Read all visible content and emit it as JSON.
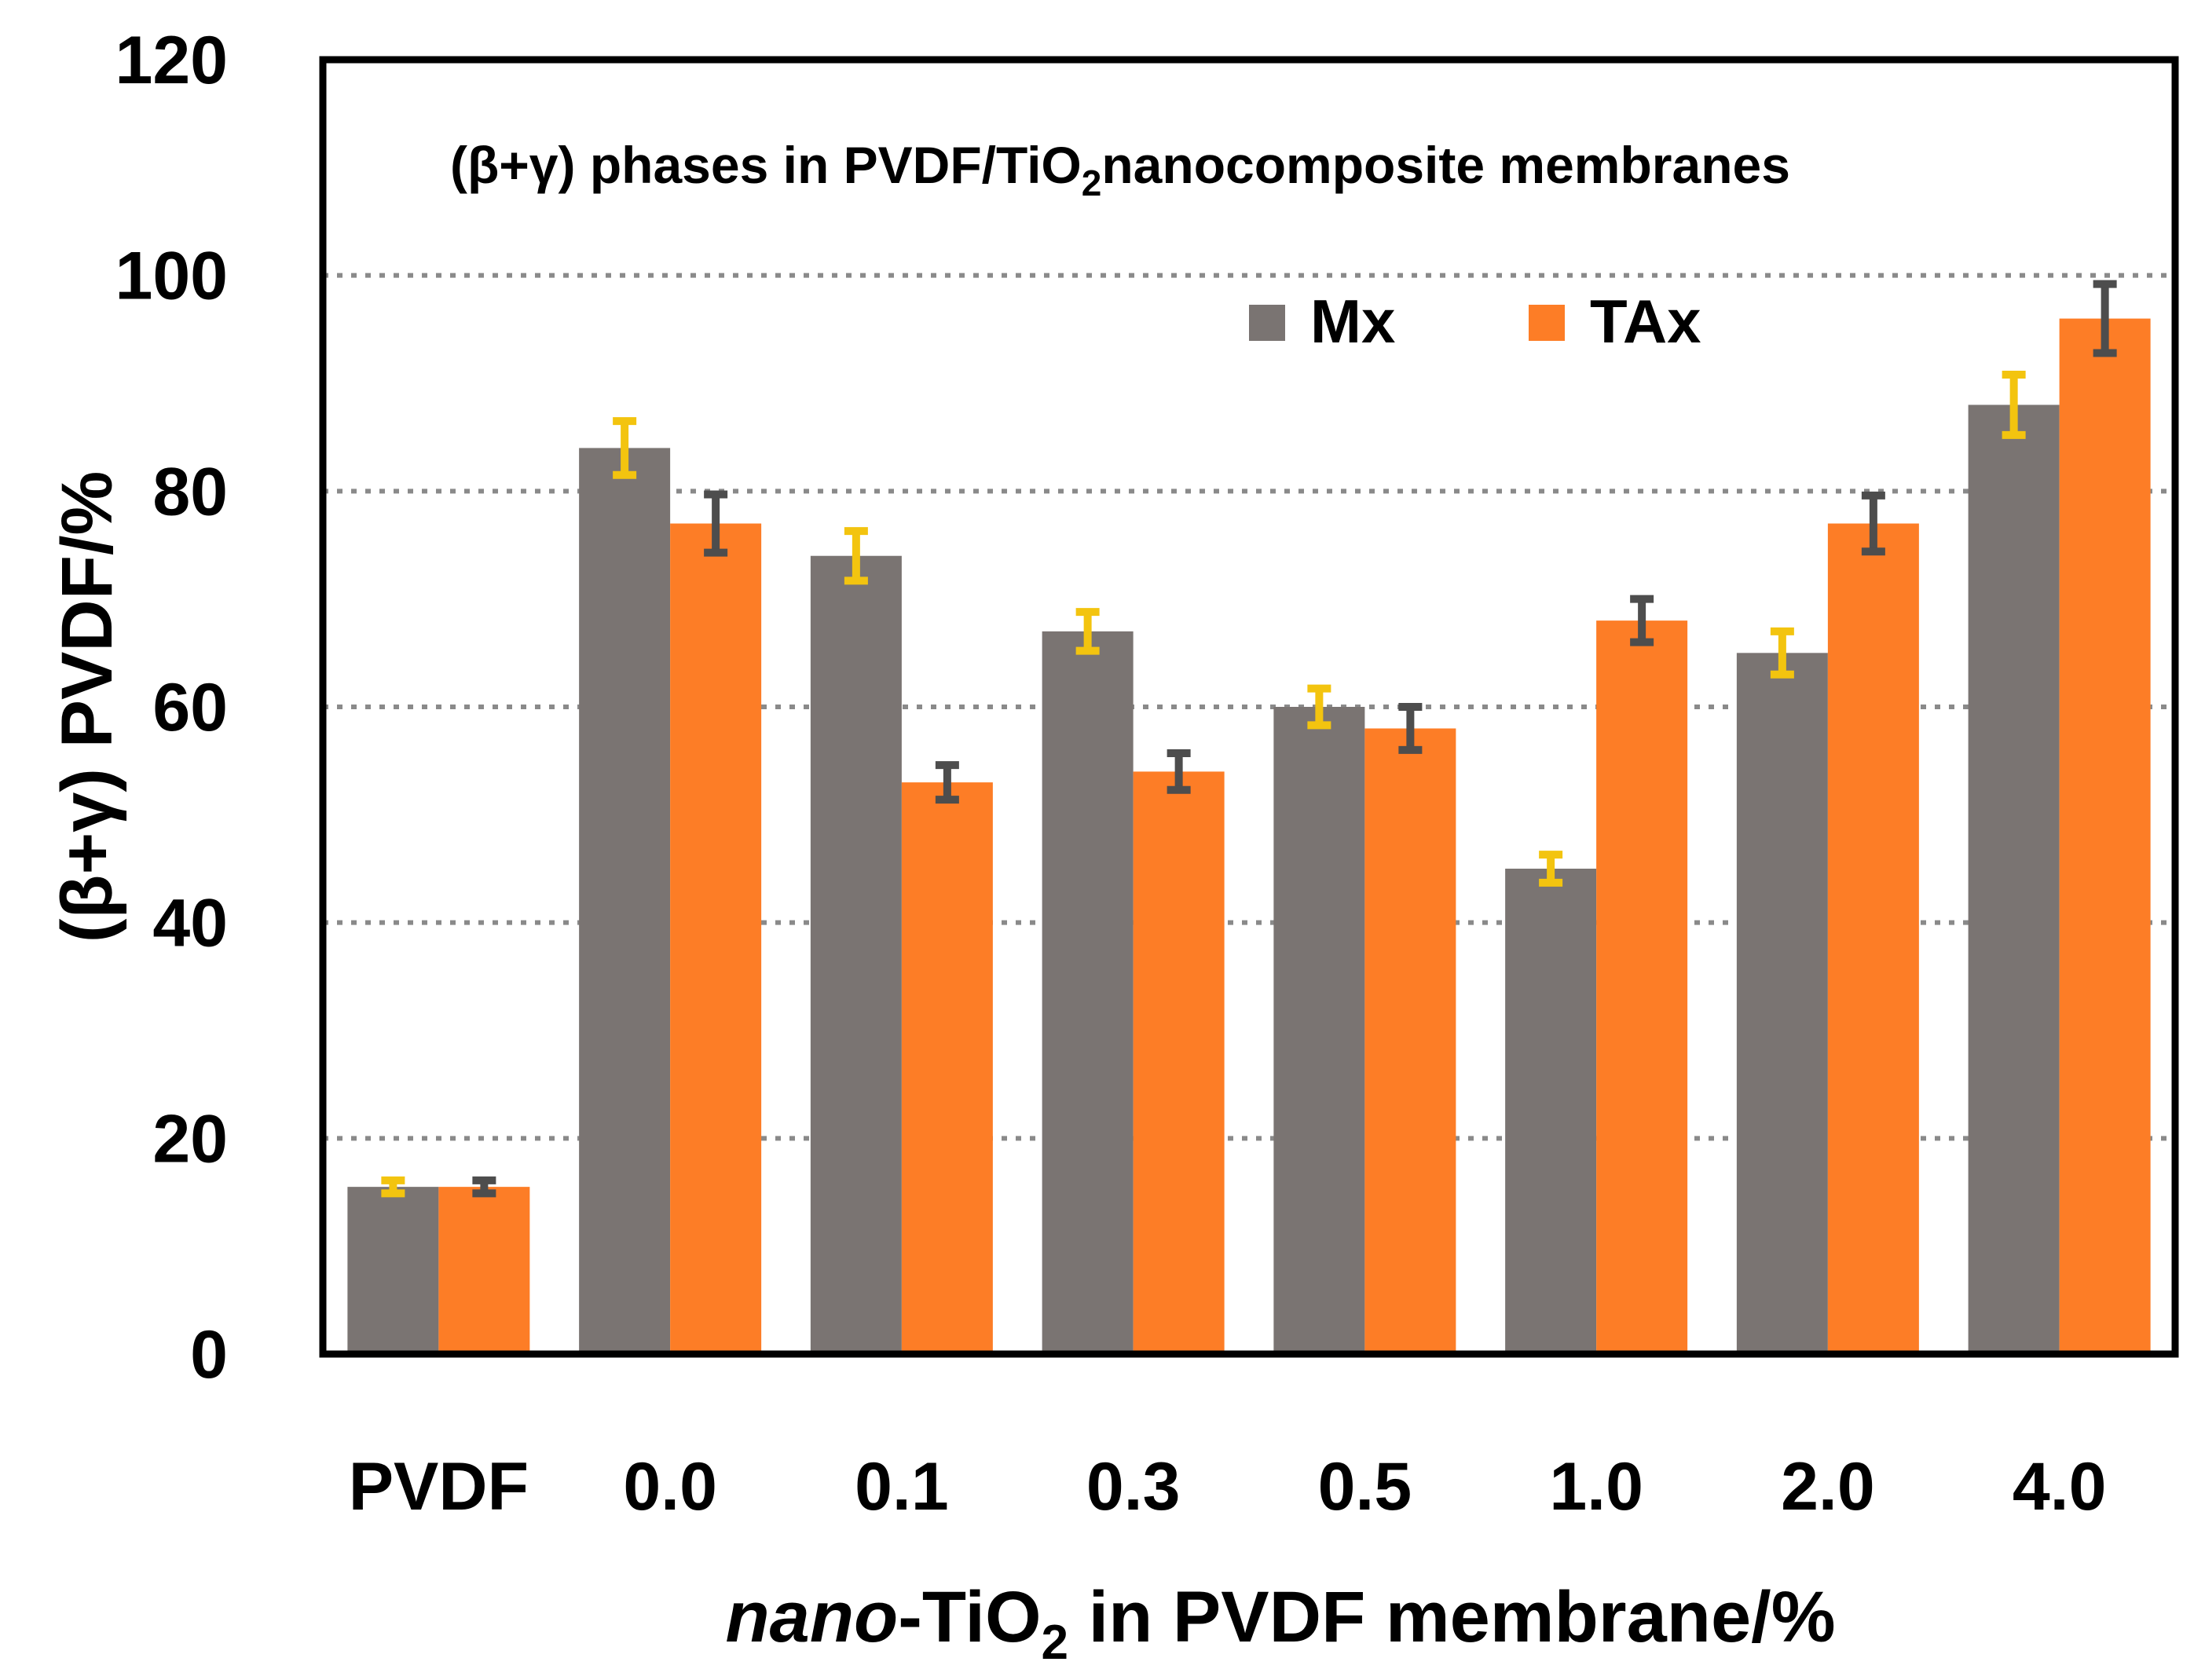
{
  "chart_data": {
    "type": "bar",
    "title": "(β+γ) phases in PVDF/TiO2nanocomposite membranes",
    "title_parts": {
      "pre": "(β+γ) phases in PVDF/TiO",
      "sub": "2",
      "post": "nanocomposite membranes"
    },
    "xlabel": "nano-TiO2 in PVDF membrane/%",
    "xlabel_parts": {
      "italic": "nano",
      "pre": "-TiO",
      "sub": "2",
      "post": " in PVDF membrane/%"
    },
    "ylabel": "(β+γ) PVDF/%",
    "ylim": [
      0,
      120
    ],
    "yticks": [
      0,
      20,
      40,
      60,
      80,
      100,
      120
    ],
    "gridlines": [
      20,
      40,
      60,
      80,
      100
    ],
    "categories": [
      "PVDF",
      "0.0",
      "0.1",
      "0.3",
      "0.5",
      "1.0",
      "2.0",
      "4.0"
    ],
    "legend_position": "top-right",
    "series": [
      {
        "name": "Mx",
        "color": "#7a7472",
        "error_color": "#f3c40f",
        "values": [
          15.5,
          84,
          74,
          67,
          60,
          45,
          65,
          88
        ],
        "errors": [
          0.6,
          2.5,
          2.3,
          1.8,
          1.7,
          1.3,
          2.0,
          2.8
        ]
      },
      {
        "name": "TAx",
        "color": "#fd7d26",
        "error_color": "#4d4d4d",
        "values": [
          15.5,
          77,
          53,
          54,
          58,
          68,
          77,
          96
        ],
        "errors": [
          0.6,
          2.7,
          1.6,
          1.7,
          2.0,
          2.0,
          2.6,
          3.2
        ]
      }
    ]
  }
}
